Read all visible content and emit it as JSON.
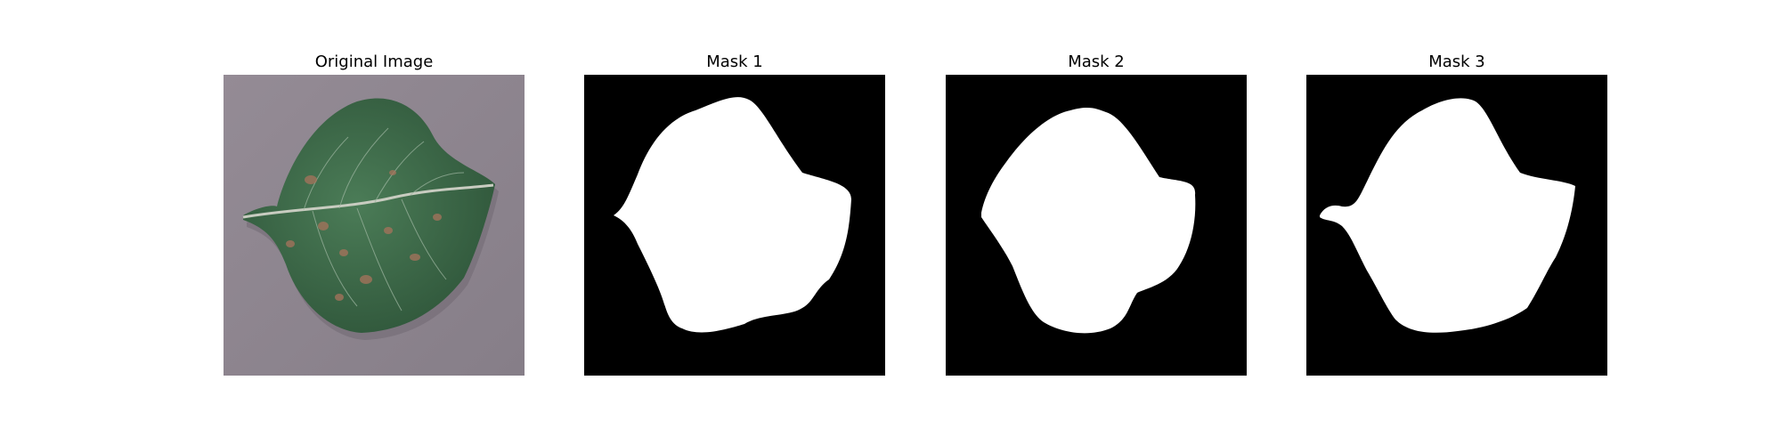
{
  "panels": [
    {
      "title": "Original Image"
    },
    {
      "title": "Mask 1"
    },
    {
      "title": "Mask 2"
    },
    {
      "title": "Mask 3"
    }
  ],
  "colors": {
    "background": "#ffffff",
    "photo_background": "#8e8690",
    "leaf": "#3f6e4c",
    "mask_background": "#000000",
    "mask_foreground": "#ffffff"
  }
}
